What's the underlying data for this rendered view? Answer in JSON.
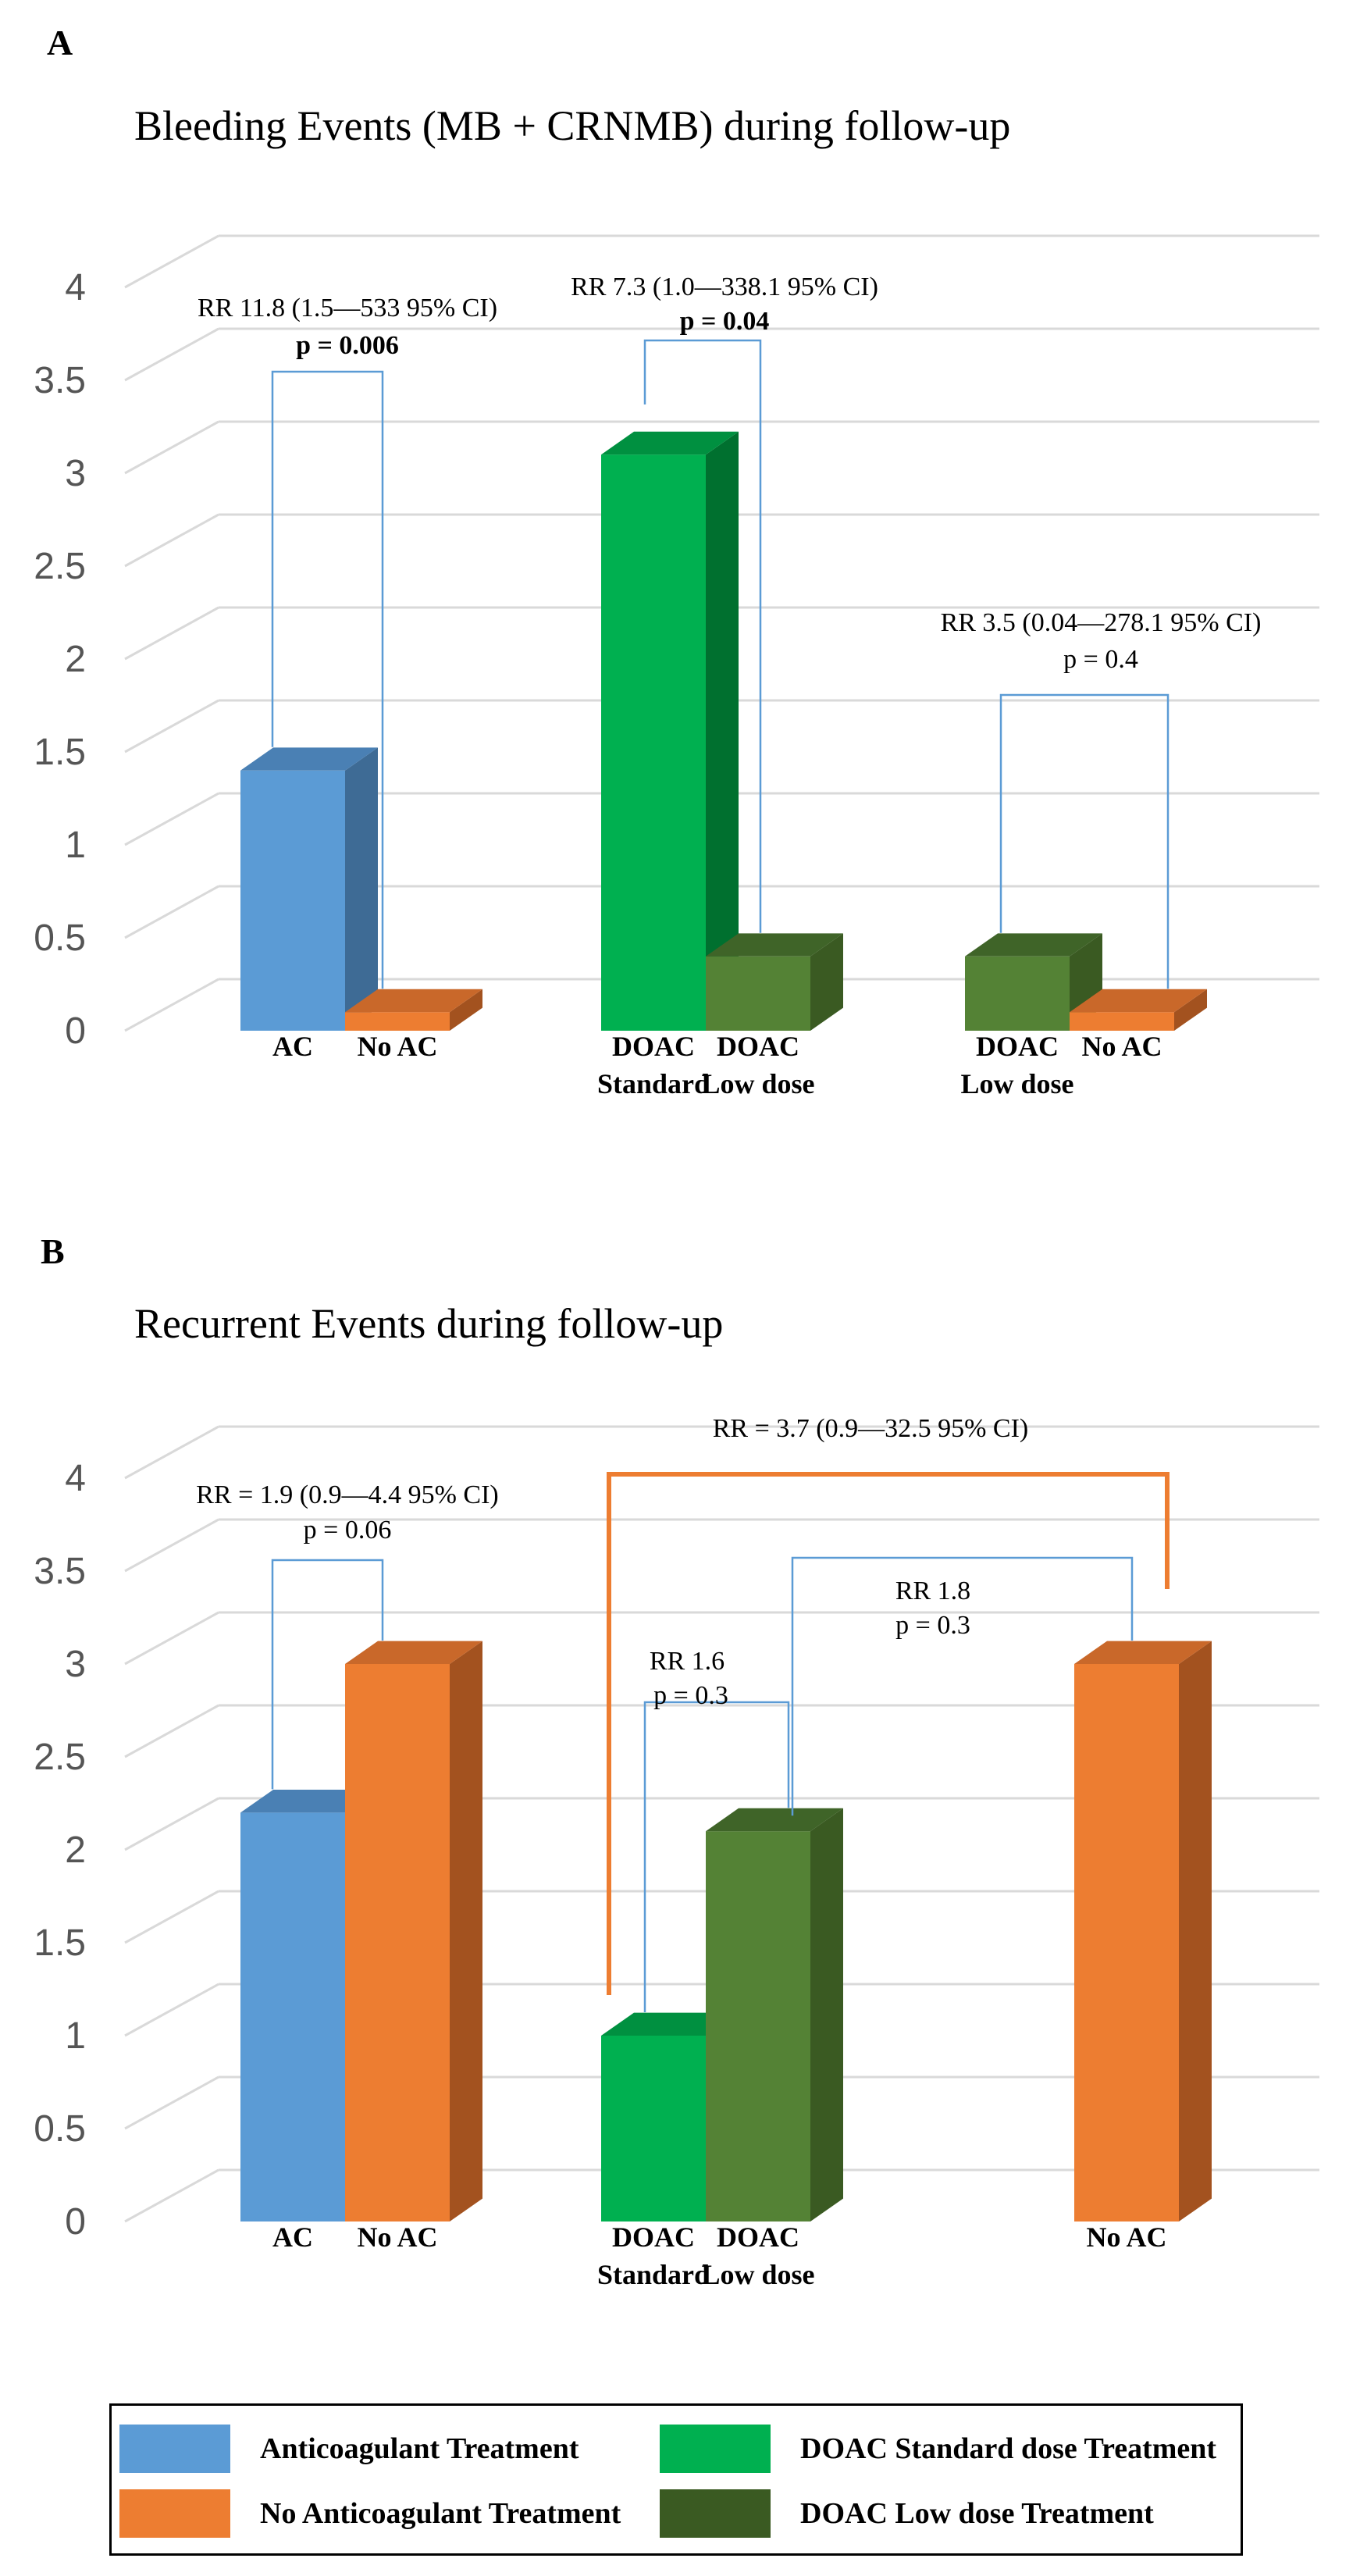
{
  "panels": [
    {
      "letter": "A",
      "title": "Bleeding Events (MB + CRNMB) during follow-up",
      "chart_data": {
        "type": "bar",
        "ylim": [
          0,
          4
        ],
        "yticks": [
          "0",
          "0.5",
          "1",
          "1.5",
          "2",
          "2.5",
          "3",
          "3.5",
          "4"
        ],
        "groups": [
          {
            "labels": [
              [
                "AC"
              ],
              [
                "No AC"
              ]
            ],
            "values": [
              1.4,
              0.1
            ],
            "series": [
              "anticoagulant",
              "no_anticoagulant"
            ]
          },
          {
            "labels": [
              [
                "DOAC",
                "Standard"
              ],
              [
                "DOAC",
                "Low dose"
              ]
            ],
            "values": [
              3.1,
              0.4
            ],
            "series": [
              "doac_standard",
              "doac_low"
            ]
          },
          {
            "labels": [
              [
                "DOAC",
                "Low dose"
              ],
              [
                "No AC"
              ]
            ],
            "values": [
              0.4,
              0.1
            ],
            "series": [
              "doac_low",
              "no_anticoagulant"
            ]
          }
        ],
        "annotations": [
          {
            "line1": "RR 11.8 (1.5—533 95% CI)",
            "line2": "p = 0.006",
            "bold_p": true
          },
          {
            "line1": "RR 7.3 (1.0—338.1 95% CI)",
            "line2": "p = 0.04",
            "bold_p": true
          },
          {
            "line1": "RR 3.5 (0.04—278.1 95% CI)",
            "line2": "p = 0.4",
            "bold_p": false
          }
        ]
      }
    },
    {
      "letter": "B",
      "title": "Recurrent Events during follow-up",
      "chart_data": {
        "type": "bar",
        "ylim": [
          0,
          4
        ],
        "yticks": [
          "0",
          "0.5",
          "1",
          "1.5",
          "2",
          "2.5",
          "3",
          "3.5",
          "4"
        ],
        "groups": [
          {
            "labels": [
              [
                "AC"
              ],
              [
                "No AC"
              ]
            ],
            "values": [
              2.2,
              3.0
            ],
            "series": [
              "anticoagulant",
              "no_anticoagulant"
            ]
          },
          {
            "labels": [
              [
                "DOAC",
                "Standard"
              ],
              [
                "DOAC",
                "Low dose"
              ]
            ],
            "values": [
              1.0,
              2.1
            ],
            "series": [
              "doac_standard",
              "doac_low"
            ]
          },
          {
            "labels": [
              [
                "No AC"
              ]
            ],
            "values": [
              3.0
            ],
            "series": [
              "no_anticoagulant"
            ]
          }
        ],
        "annotations": [
          {
            "line1": "RR =  1.9 (0.9—4.4 95% CI)",
            "line2": "p = 0.06"
          },
          {
            "line1": "RR 1.6",
            "line2": "p = 0.3"
          },
          {
            "line1": "RR 1.8",
            "line2": "p = 0.3"
          },
          {
            "line1": "RR = 3.7 (0.9—32.5 95% CI)"
          }
        ]
      }
    }
  ],
  "legend": [
    {
      "key": "anticoagulant",
      "label": "Anticoagulant Treatment"
    },
    {
      "key": "doac_standard",
      "label": "DOAC Standard dose Treatment"
    },
    {
      "key": "no_anticoagulant",
      "label": "No Anticoagulant Treatment"
    },
    {
      "key": "doac_low",
      "label": "DOAC  Low dose Treatment"
    }
  ],
  "colors": {
    "anticoagulant": {
      "front": "#5b9bd5",
      "side": "#3e6b95",
      "top": "#4a80b4"
    },
    "no_anticoagulant": {
      "front": "#ed7d31",
      "side": "#a3521f",
      "top": "#c9682a"
    },
    "doac_standard": {
      "front": "#00b050",
      "side": "#00702f",
      "top": "#009040"
    },
    "doac_low": {
      "front": "#548235",
      "side": "#3a5a22",
      "top": "#3f6428"
    },
    "grid": "#d9d9d9",
    "bracket": "#5b9bd5",
    "bracket_orange": "#ed7d31"
  }
}
